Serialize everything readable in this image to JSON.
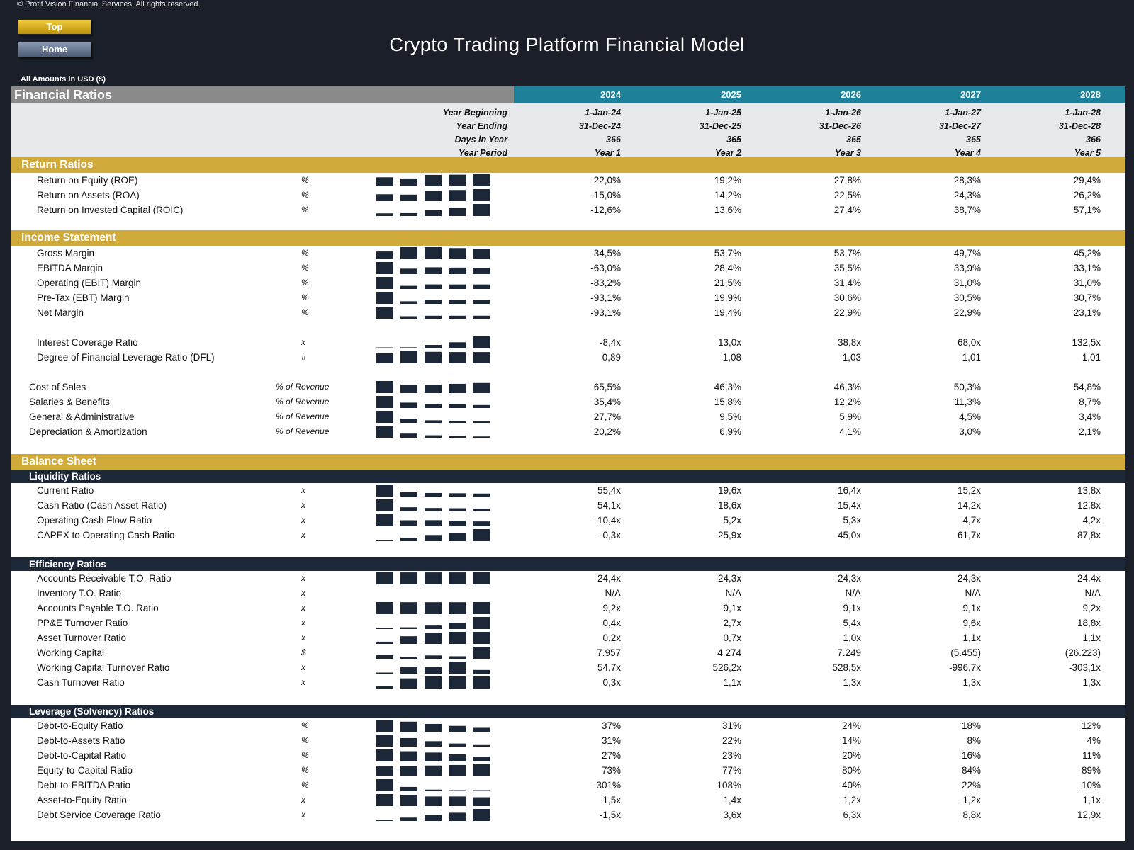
{
  "copyright": "© Profit Vision Financial Services. All rights reserved.",
  "nav": {
    "top_label": "Top",
    "home_label": "Home"
  },
  "title": "Crypto Trading Platform Financial Model",
  "currency_note": "All Amounts in  USD ($)",
  "sheet_title": "Financial Ratios",
  "years": [
    "2024",
    "2025",
    "2026",
    "2027",
    "2028"
  ],
  "meta": [
    {
      "label": "Year Beginning",
      "values": [
        "1-Jan-24",
        "1-Jan-25",
        "1-Jan-26",
        "1-Jan-27",
        "1-Jan-28"
      ]
    },
    {
      "label": "Year Ending",
      "values": [
        "31-Dec-24",
        "31-Dec-25",
        "31-Dec-26",
        "31-Dec-27",
        "31-Dec-28"
      ]
    },
    {
      "label": "Days in Year",
      "values": [
        "366",
        "365",
        "365",
        "365",
        "366"
      ]
    },
    {
      "label": "Year Period",
      "values": [
        "Year 1",
        "Year 2",
        "Year 3",
        "Year 4",
        "Year 5"
      ]
    }
  ],
  "colors": {
    "gold": "#d1aa3c",
    "teal": "#1f8199",
    "navy": "#1c2738",
    "grey": "#8a8a8a",
    "spark": "#1c2738"
  },
  "sections": [
    {
      "type": "section",
      "title": "Return Ratios"
    },
    {
      "type": "row",
      "label": "Return on Equity (ROE)",
      "unit": "%",
      "values": [
        "-22,0%",
        "19,2%",
        "27,8%",
        "28,3%",
        "29,4%"
      ]
    },
    {
      "type": "row",
      "label": "Return on Assets (ROA)",
      "unit": "%",
      "values": [
        "-15,0%",
        "14,2%",
        "22,5%",
        "24,3%",
        "26,2%"
      ]
    },
    {
      "type": "row",
      "label": "Return on Invested Capital (ROIC)",
      "unit": "%",
      "values": [
        "-12,6%",
        "13,6%",
        "27,4%",
        "38,7%",
        "57,1%"
      ]
    },
    {
      "type": "gap",
      "h": 18
    },
    {
      "type": "section",
      "title": "Income Statement"
    },
    {
      "type": "row",
      "label": "Gross Margin",
      "unit": "%",
      "values": [
        "34,5%",
        "53,7%",
        "53,7%",
        "49,7%",
        "45,2%"
      ]
    },
    {
      "type": "row",
      "label": "EBITDA Margin",
      "unit": "%",
      "values": [
        "-63,0%",
        "28,4%",
        "35,5%",
        "33,9%",
        "33,1%"
      ]
    },
    {
      "type": "row",
      "label": "Operating (EBIT) Margin",
      "unit": "%",
      "values": [
        "-83,2%",
        "21,5%",
        "31,4%",
        "31,0%",
        "31,0%"
      ]
    },
    {
      "type": "row",
      "label": "Pre-Tax (EBT) Margin",
      "unit": "%",
      "values": [
        "-93,1%",
        "19,9%",
        "30,6%",
        "30,5%",
        "30,7%"
      ]
    },
    {
      "type": "row",
      "label": "Net Margin",
      "unit": "%",
      "values": [
        "-93,1%",
        "19,4%",
        "22,9%",
        "22,9%",
        "23,1%"
      ]
    },
    {
      "type": "gap",
      "h": 21
    },
    {
      "type": "row",
      "label": "Interest Coverage Ratio",
      "unit": "x",
      "values": [
        "-8,4x",
        "13,0x",
        "38,8x",
        "68,0x",
        "132,5x"
      ]
    },
    {
      "type": "row",
      "label": "Degree of Financial Leverage Ratio (DFL)",
      "unit": "#",
      "values": [
        "0,89",
        "1,08",
        "1,03",
        "1,01",
        "1,01"
      ]
    },
    {
      "type": "gap",
      "h": 21
    },
    {
      "type": "row",
      "label": "Cost of Sales",
      "unit": "% of Revenue",
      "outer": true,
      "values": [
        "65,5%",
        "46,3%",
        "46,3%",
        "50,3%",
        "54,8%"
      ]
    },
    {
      "type": "row",
      "label": "Salaries & Benefits",
      "unit": "% of Revenue",
      "outer": true,
      "values": [
        "35,4%",
        "15,8%",
        "12,2%",
        "11,3%",
        "8,7%"
      ]
    },
    {
      "type": "row",
      "label": "General & Administrative",
      "unit": "% of Revenue",
      "outer": true,
      "values": [
        "27,7%",
        "9,5%",
        "5,9%",
        "4,5%",
        "3,4%"
      ]
    },
    {
      "type": "row",
      "label": "Depreciation & Amortization",
      "unit": "% of Revenue",
      "outer": true,
      "values": [
        "20,2%",
        "6,9%",
        "4,1%",
        "3,0%",
        "2,1%"
      ]
    },
    {
      "type": "gap",
      "h": 21
    },
    {
      "type": "section",
      "title": "Balance Sheet"
    },
    {
      "type": "subsection",
      "title": "Liquidity Ratios"
    },
    {
      "type": "row",
      "label": "Current Ratio",
      "unit": "x",
      "values": [
        "55,4x",
        "19,6x",
        "16,4x",
        "15,2x",
        "13,8x"
      ]
    },
    {
      "type": "row",
      "label": "Cash Ratio (Cash Asset Ratio)",
      "unit": "x",
      "values": [
        "54,1x",
        "18,6x",
        "15,4x",
        "14,2x",
        "12,8x"
      ]
    },
    {
      "type": "row",
      "label": "Operating Cash Flow Ratio",
      "unit": "x",
      "values": [
        "-10,4x",
        "5,2x",
        "5,3x",
        "4,7x",
        "4,2x"
      ]
    },
    {
      "type": "row",
      "label": "CAPEX to Operating Cash Ratio",
      "unit": "x",
      "values": [
        "-0,3x",
        "25,9x",
        "45,0x",
        "61,7x",
        "87,8x"
      ]
    },
    {
      "type": "gap",
      "h": 21
    },
    {
      "type": "subsection",
      "title": "Efficiency Ratios"
    },
    {
      "type": "row",
      "label": "Accounts Receivable T.O. Ratio",
      "unit": "x",
      "values": [
        "24,4x",
        "24,3x",
        "24,3x",
        "24,3x",
        "24,4x"
      ]
    },
    {
      "type": "row",
      "label": "Inventory T.O. Ratio",
      "unit": "x",
      "values": [
        "N/A",
        "N/A",
        "N/A",
        "N/A",
        "N/A"
      ]
    },
    {
      "type": "row",
      "label": "Accounts Payable T.O. Ratio",
      "unit": "x",
      "values": [
        "9,2x",
        "9,1x",
        "9,1x",
        "9,1x",
        "9,2x"
      ]
    },
    {
      "type": "row",
      "label": "PP&E Turnover Ratio",
      "unit": "x",
      "values": [
        "0,4x",
        "2,7x",
        "5,4x",
        "9,6x",
        "18,8x"
      ]
    },
    {
      "type": "row",
      "label": "Asset Turnover Ratio",
      "unit": "x",
      "values": [
        "0,2x",
        "0,7x",
        "1,0x",
        "1,1x",
        "1,1x"
      ]
    },
    {
      "type": "row",
      "label": "Working Capital",
      "unit": "$",
      "values": [
        "7.957",
        "4.274",
        "7.249",
        "(5.455)",
        "(26.223)"
      ]
    },
    {
      "type": "row",
      "label": "Working Capital Turnover Ratio",
      "unit": "x",
      "values": [
        "54,7x",
        "526,2x",
        "528,5x",
        "-996,7x",
        "-303,1x"
      ]
    },
    {
      "type": "row",
      "label": "Cash Turnover Ratio",
      "unit": "x",
      "values": [
        "0,3x",
        "1,1x",
        "1,3x",
        "1,3x",
        "1,3x"
      ]
    },
    {
      "type": "gap",
      "h": 21
    },
    {
      "type": "subsection",
      "title": "Leverage (Solvency) Ratios"
    },
    {
      "type": "row",
      "label": "Debt-to-Equity Ratio",
      "unit": "%",
      "values": [
        "37%",
        "31%",
        "24%",
        "18%",
        "12%"
      ]
    },
    {
      "type": "row",
      "label": "Debt-to-Assets Ratio",
      "unit": "%",
      "values": [
        "31%",
        "22%",
        "14%",
        "8%",
        "4%"
      ]
    },
    {
      "type": "row",
      "label": "Debt-to-Capital Ratio",
      "unit": "%",
      "values": [
        "27%",
        "23%",
        "20%",
        "16%",
        "11%"
      ]
    },
    {
      "type": "row",
      "label": "Equity-to-Capital Ratio",
      "unit": "%",
      "values": [
        "73%",
        "77%",
        "80%",
        "84%",
        "89%"
      ]
    },
    {
      "type": "row",
      "label": "Debt-to-EBITDA Ratio",
      "unit": "%",
      "values": [
        "-301%",
        "108%",
        "40%",
        "22%",
        "10%"
      ]
    },
    {
      "type": "row",
      "label": "Asset-to-Equity Ratio",
      "unit": "x",
      "values": [
        "1,5x",
        "1,4x",
        "1,2x",
        "1,2x",
        "1,1x"
      ]
    },
    {
      "type": "row",
      "label": "Debt Service Coverage Ratio",
      "unit": "x",
      "values": [
        "-1,5x",
        "3,6x",
        "6,3x",
        "8,8x",
        "12,9x"
      ]
    }
  ]
}
